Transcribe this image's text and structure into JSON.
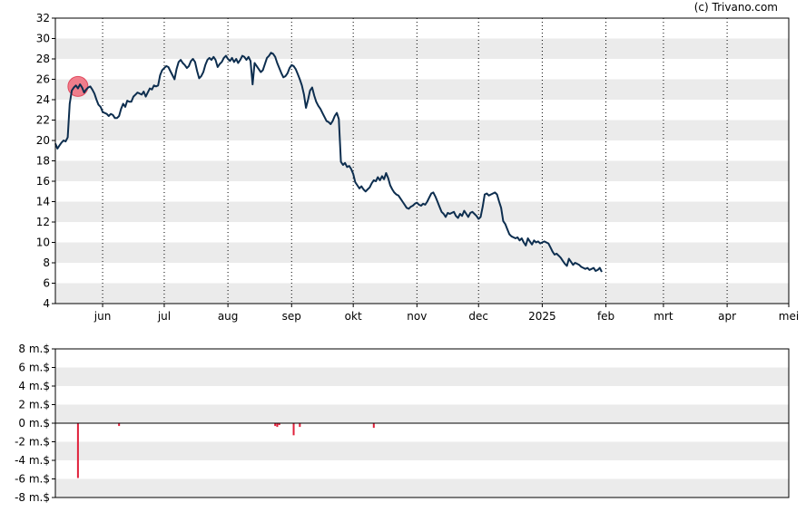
{
  "copyright": "(c) Trivano.com",
  "chart_data": [
    {
      "type": "line",
      "ylim": [
        4,
        32
      ],
      "yticks": [
        "32",
        "30",
        "28",
        "26",
        "24",
        "22",
        "20",
        "18",
        "16",
        "14",
        "12",
        "10",
        "8",
        "6",
        "4"
      ],
      "grid": "alternating horizontal bands, dotted vertical lines at month ticks",
      "xticks": [
        {
          "label": "jun",
          "day": 23
        },
        {
          "label": "jul",
          "day": 53
        },
        {
          "label": "aug",
          "day": 84
        },
        {
          "label": "sep",
          "day": 115
        },
        {
          "label": "okt",
          "day": 145
        },
        {
          "label": "nov",
          "day": 176
        },
        {
          "label": "dec",
          "day": 206
        },
        {
          "label": "2025",
          "day": 237
        },
        {
          "label": "feb",
          "day": 268
        },
        {
          "label": "mrt",
          "day": 296
        },
        {
          "label": "apr",
          "day": 327
        },
        {
          "label": "mei",
          "day": 357
        }
      ],
      "xlim": [
        0,
        357
      ],
      "color": "#0d2e4f",
      "marker": {
        "day": 11,
        "value": 25.3,
        "color": "#f06a7a"
      },
      "points": [
        [
          0,
          19.7
        ],
        [
          1,
          19.2
        ],
        [
          2,
          19.5
        ],
        [
          3,
          19.8
        ],
        [
          4,
          20.0
        ],
        [
          5,
          19.9
        ],
        [
          6,
          20.3
        ],
        [
          7,
          23.6
        ],
        [
          8,
          24.9
        ],
        [
          9,
          25.2
        ],
        [
          10,
          25.4
        ],
        [
          11,
          25.1
        ],
        [
          12,
          25.5
        ],
        [
          13,
          25.2
        ],
        [
          14,
          24.7
        ],
        [
          15,
          25.0
        ],
        [
          16,
          25.2
        ],
        [
          17,
          25.3
        ],
        [
          18,
          25.0
        ],
        [
          19,
          24.6
        ],
        [
          20,
          24.0
        ],
        [
          21,
          23.5
        ],
        [
          22,
          23.3
        ],
        [
          23,
          22.8
        ],
        [
          24,
          22.7
        ],
        [
          25,
          22.6
        ],
        [
          26,
          22.4
        ],
        [
          27,
          22.6
        ],
        [
          28,
          22.5
        ],
        [
          29,
          22.2
        ],
        [
          30,
          22.2
        ],
        [
          31,
          22.4
        ],
        [
          32,
          23.1
        ],
        [
          33,
          23.6
        ],
        [
          34,
          23.3
        ],
        [
          35,
          23.9
        ],
        [
          36,
          23.8
        ],
        [
          37,
          23.8
        ],
        [
          38,
          24.3
        ],
        [
          39,
          24.5
        ],
        [
          40,
          24.7
        ],
        [
          41,
          24.6
        ],
        [
          42,
          24.5
        ],
        [
          43,
          24.8
        ],
        [
          44,
          24.3
        ],
        [
          45,
          24.7
        ],
        [
          46,
          25.1
        ],
        [
          47,
          25.0
        ],
        [
          48,
          25.4
        ],
        [
          49,
          25.3
        ],
        [
          50,
          25.4
        ],
        [
          51,
          26.4
        ],
        [
          52,
          26.9
        ],
        [
          53,
          27.1
        ],
        [
          54,
          27.3
        ],
        [
          55,
          27.2
        ],
        [
          56,
          26.8
        ],
        [
          57,
          26.4
        ],
        [
          58,
          26.0
        ],
        [
          59,
          27.0
        ],
        [
          60,
          27.7
        ],
        [
          61,
          27.9
        ],
        [
          62,
          27.6
        ],
        [
          63,
          27.4
        ],
        [
          64,
          27.1
        ],
        [
          65,
          27.3
        ],
        [
          66,
          27.8
        ],
        [
          67,
          28.0
        ],
        [
          68,
          27.7
        ],
        [
          69,
          26.8
        ],
        [
          70,
          26.1
        ],
        [
          71,
          26.3
        ],
        [
          72,
          26.7
        ],
        [
          73,
          27.4
        ],
        [
          74,
          27.9
        ],
        [
          75,
          28.1
        ],
        [
          76,
          27.9
        ],
        [
          77,
          28.2
        ],
        [
          78,
          27.9
        ],
        [
          79,
          27.2
        ],
        [
          80,
          27.5
        ],
        [
          81,
          27.7
        ],
        [
          82,
          28.1
        ],
        [
          83,
          28.3
        ],
        [
          84,
          28.0
        ],
        [
          85,
          27.8
        ],
        [
          86,
          28.1
        ],
        [
          87,
          27.7
        ],
        [
          88,
          28.0
        ],
        [
          89,
          27.6
        ],
        [
          90,
          27.9
        ],
        [
          91,
          28.3
        ],
        [
          92,
          28.2
        ],
        [
          93,
          27.9
        ],
        [
          94,
          28.2
        ],
        [
          95,
          27.8
        ],
        [
          96,
          25.5
        ],
        [
          97,
          27.6
        ],
        [
          98,
          27.3
        ],
        [
          99,
          27.0
        ],
        [
          100,
          26.7
        ],
        [
          101,
          26.9
        ],
        [
          102,
          27.5
        ],
        [
          103,
          28.1
        ],
        [
          104,
          28.3
        ],
        [
          105,
          28.6
        ],
        [
          106,
          28.5
        ],
        [
          107,
          28.2
        ],
        [
          108,
          27.6
        ],
        [
          109,
          27.1
        ],
        [
          110,
          26.6
        ],
        [
          111,
          26.2
        ],
        [
          112,
          26.3
        ],
        [
          113,
          26.6
        ],
        [
          114,
          27.1
        ],
        [
          115,
          27.4
        ],
        [
          116,
          27.3
        ],
        [
          117,
          27.0
        ],
        [
          118,
          26.5
        ],
        [
          119,
          26.0
        ],
        [
          120,
          25.4
        ],
        [
          121,
          24.5
        ],
        [
          122,
          23.2
        ],
        [
          123,
          24.0
        ],
        [
          124,
          24.9
        ],
        [
          125,
          25.2
        ],
        [
          126,
          24.4
        ],
        [
          127,
          23.8
        ],
        [
          128,
          23.4
        ],
        [
          129,
          23.1
        ],
        [
          130,
          22.7
        ],
        [
          131,
          22.3
        ],
        [
          132,
          21.9
        ],
        [
          133,
          21.8
        ],
        [
          134,
          21.6
        ],
        [
          135,
          21.9
        ],
        [
          136,
          22.4
        ],
        [
          137,
          22.7
        ],
        [
          138,
          22.1
        ],
        [
          139,
          17.9
        ],
        [
          140,
          17.6
        ],
        [
          141,
          17.8
        ],
        [
          142,
          17.4
        ],
        [
          143,
          17.5
        ],
        [
          144,
          17.2
        ],
        [
          145,
          16.7
        ],
        [
          146,
          15.9
        ],
        [
          147,
          15.6
        ],
        [
          148,
          15.3
        ],
        [
          149,
          15.5
        ],
        [
          150,
          15.2
        ],
        [
          151,
          15.0
        ],
        [
          152,
          15.2
        ],
        [
          153,
          15.4
        ],
        [
          154,
          15.8
        ],
        [
          155,
          16.1
        ],
        [
          156,
          16.0
        ],
        [
          157,
          16.4
        ],
        [
          158,
          16.1
        ],
        [
          159,
          16.5
        ],
        [
          160,
          16.2
        ],
        [
          161,
          16.8
        ],
        [
          162,
          16.3
        ],
        [
          163,
          15.6
        ],
        [
          164,
          15.2
        ],
        [
          165,
          14.9
        ],
        [
          166,
          14.7
        ],
        [
          167,
          14.6
        ],
        [
          168,
          14.3
        ],
        [
          169,
          14.0
        ],
        [
          170,
          13.7
        ],
        [
          171,
          13.4
        ],
        [
          172,
          13.3
        ],
        [
          173,
          13.5
        ],
        [
          174,
          13.6
        ],
        [
          175,
          13.8
        ],
        [
          176,
          13.9
        ],
        [
          177,
          13.7
        ],
        [
          178,
          13.6
        ],
        [
          179,
          13.8
        ],
        [
          180,
          13.7
        ],
        [
          181,
          14.0
        ],
        [
          182,
          14.4
        ],
        [
          183,
          14.8
        ],
        [
          184,
          14.9
        ],
        [
          185,
          14.5
        ],
        [
          186,
          14.0
        ],
        [
          187,
          13.5
        ],
        [
          188,
          13.0
        ],
        [
          189,
          12.8
        ],
        [
          190,
          12.5
        ],
        [
          191,
          12.9
        ],
        [
          192,
          12.8
        ],
        [
          193,
          12.9
        ],
        [
          194,
          13.0
        ],
        [
          195,
          12.6
        ],
        [
          196,
          12.4
        ],
        [
          197,
          12.8
        ],
        [
          198,
          12.6
        ],
        [
          199,
          13.1
        ],
        [
          200,
          12.8
        ],
        [
          201,
          12.5
        ],
        [
          202,
          12.9
        ],
        [
          203,
          13.0
        ],
        [
          204,
          12.8
        ],
        [
          205,
          12.6
        ],
        [
          206,
          12.3
        ],
        [
          207,
          12.5
        ],
        [
          208,
          13.5
        ],
        [
          209,
          14.7
        ],
        [
          210,
          14.8
        ],
        [
          211,
          14.6
        ],
        [
          212,
          14.7
        ],
        [
          213,
          14.8
        ],
        [
          214,
          14.9
        ],
        [
          215,
          14.7
        ],
        [
          216,
          14.0
        ],
        [
          217,
          13.4
        ],
        [
          218,
          12.1
        ],
        [
          219,
          11.8
        ],
        [
          220,
          11.3
        ],
        [
          221,
          10.8
        ],
        [
          222,
          10.6
        ],
        [
          223,
          10.5
        ],
        [
          224,
          10.4
        ],
        [
          225,
          10.5
        ],
        [
          226,
          10.2
        ],
        [
          227,
          10.4
        ],
        [
          228,
          10.0
        ],
        [
          229,
          9.7
        ],
        [
          230,
          10.4
        ],
        [
          231,
          10.1
        ],
        [
          232,
          9.8
        ],
        [
          233,
          10.2
        ],
        [
          234,
          10.0
        ],
        [
          235,
          10.1
        ],
        [
          236,
          9.9
        ],
        [
          237,
          10.0
        ],
        [
          238,
          10.1
        ],
        [
          239,
          10.0
        ],
        [
          240,
          9.9
        ],
        [
          241,
          9.5
        ],
        [
          242,
          9.1
        ],
        [
          243,
          8.8
        ],
        [
          244,
          8.9
        ],
        [
          245,
          8.7
        ],
        [
          246,
          8.5
        ],
        [
          247,
          8.2
        ],
        [
          248,
          7.9
        ],
        [
          249,
          7.7
        ],
        [
          250,
          8.4
        ],
        [
          251,
          8.1
        ],
        [
          252,
          7.8
        ],
        [
          253,
          8.0
        ],
        [
          254,
          7.9
        ],
        [
          255,
          7.8
        ],
        [
          256,
          7.6
        ],
        [
          257,
          7.5
        ],
        [
          258,
          7.4
        ],
        [
          259,
          7.5
        ],
        [
          260,
          7.3
        ],
        [
          261,
          7.4
        ],
        [
          262,
          7.5
        ],
        [
          263,
          7.2
        ],
        [
          264,
          7.3
        ],
        [
          265,
          7.5
        ],
        [
          266,
          7.1
        ]
      ]
    },
    {
      "type": "bar",
      "ylim": [
        -8,
        8
      ],
      "yticks": [
        "8 m.$",
        "6 m.$",
        "4 m.$",
        "2 m.$",
        "0 m.$",
        "-2 m.$",
        "-4 m.$",
        "-6 m.$",
        "-8 m.$"
      ],
      "color": "#e0203a",
      "bars": [
        [
          11,
          -5.9
        ],
        [
          31,
          -0.3
        ],
        [
          107,
          -0.3
        ],
        [
          108,
          -0.4
        ],
        [
          109,
          -0.2
        ],
        [
          116,
          -1.3
        ],
        [
          119,
          -0.4
        ],
        [
          155,
          -0.5
        ]
      ]
    }
  ]
}
